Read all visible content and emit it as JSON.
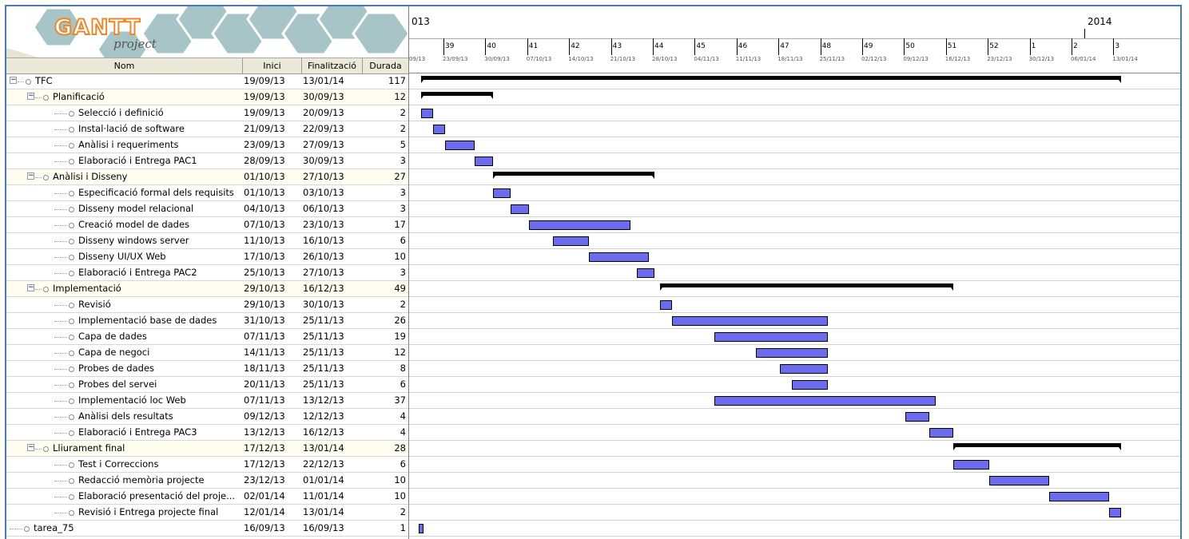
{
  "app": {
    "logo_main": "GANTT",
    "logo_sub": "project"
  },
  "columns": {
    "name": "Nom",
    "start": "Inici",
    "end": "Finalització",
    "duration": "Durada"
  },
  "timeline": {
    "years": [
      "013",
      "2014"
    ],
    "weeks": [
      {
        "num": "",
        "date": "09/13"
      },
      {
        "num": "39",
        "date": "23/09/13"
      },
      {
        "num": "40",
        "date": "30/09/13"
      },
      {
        "num": "41",
        "date": "07/10/13"
      },
      {
        "num": "42",
        "date": "14/10/13"
      },
      {
        "num": "43",
        "date": "21/10/13"
      },
      {
        "num": "44",
        "date": "28/10/13"
      },
      {
        "num": "45",
        "date": "04/11/13"
      },
      {
        "num": "46",
        "date": "11/11/13"
      },
      {
        "num": "47",
        "date": "18/11/13"
      },
      {
        "num": "48",
        "date": "25/11/13"
      },
      {
        "num": "49",
        "date": "02/12/13"
      },
      {
        "num": "50",
        "date": "09/12/13"
      },
      {
        "num": "51",
        "date": "16/12/13"
      },
      {
        "num": "52",
        "date": "23/12/13"
      },
      {
        "num": "1",
        "date": "30/12/13"
      },
      {
        "num": "2",
        "date": "06/01/14"
      },
      {
        "num": "3",
        "date": "13/01/14"
      }
    ]
  },
  "tasks": [
    {
      "name": "TFC",
      "start": "19/09/13",
      "end": "13/01/14",
      "duration": "117",
      "level": 0,
      "type": "summary"
    },
    {
      "name": "Planificació",
      "start": "19/09/13",
      "end": "30/09/13",
      "duration": "12",
      "level": 1,
      "type": "summary"
    },
    {
      "name": "Selecció i definició",
      "start": "19/09/13",
      "end": "20/09/13",
      "duration": "2",
      "level": 2,
      "type": "task"
    },
    {
      "name": "Instal·lació de software",
      "start": "21/09/13",
      "end": "22/09/13",
      "duration": "2",
      "level": 2,
      "type": "task"
    },
    {
      "name": "Anàlisi i requeriments",
      "start": "23/09/13",
      "end": "27/09/13",
      "duration": "5",
      "level": 2,
      "type": "task"
    },
    {
      "name": "Elaboració i Entrega PAC1",
      "start": "28/09/13",
      "end": "30/09/13",
      "duration": "3",
      "level": 2,
      "type": "task"
    },
    {
      "name": "Anàlisi i Disseny",
      "start": "01/10/13",
      "end": "27/10/13",
      "duration": "27",
      "level": 1,
      "type": "summary"
    },
    {
      "name": "Especificació formal dels requisits",
      "start": "01/10/13",
      "end": "03/10/13",
      "duration": "3",
      "level": 2,
      "type": "task"
    },
    {
      "name": "Disseny model relacional",
      "start": "04/10/13",
      "end": "06/10/13",
      "duration": "3",
      "level": 2,
      "type": "task"
    },
    {
      "name": "Creació model de dades",
      "start": "07/10/13",
      "end": "23/10/13",
      "duration": "17",
      "level": 2,
      "type": "task"
    },
    {
      "name": "Disseny windows server",
      "start": "11/10/13",
      "end": "16/10/13",
      "duration": "6",
      "level": 2,
      "type": "task"
    },
    {
      "name": "Disseny UI/UX Web",
      "start": "17/10/13",
      "end": "26/10/13",
      "duration": "10",
      "level": 2,
      "type": "task"
    },
    {
      "name": "Elaboració i Entrega PAC2",
      "start": "25/10/13",
      "end": "27/10/13",
      "duration": "3",
      "level": 2,
      "type": "task"
    },
    {
      "name": "Implementació",
      "start": "29/10/13",
      "end": "16/12/13",
      "duration": "49",
      "level": 1,
      "type": "summary"
    },
    {
      "name": "Revisió",
      "start": "29/10/13",
      "end": "30/10/13",
      "duration": "2",
      "level": 2,
      "type": "task"
    },
    {
      "name": "Implementació base de dades",
      "start": "31/10/13",
      "end": "25/11/13",
      "duration": "26",
      "level": 2,
      "type": "task"
    },
    {
      "name": "Capa de dades",
      "start": "07/11/13",
      "end": "25/11/13",
      "duration": "19",
      "level": 2,
      "type": "task"
    },
    {
      "name": "Capa de negoci",
      "start": "14/11/13",
      "end": "25/11/13",
      "duration": "12",
      "level": 2,
      "type": "task"
    },
    {
      "name": "Probes de dades",
      "start": "18/11/13",
      "end": "25/11/13",
      "duration": "8",
      "level": 2,
      "type": "task"
    },
    {
      "name": "Probes del servei",
      "start": "20/11/13",
      "end": "25/11/13",
      "duration": "6",
      "level": 2,
      "type": "task"
    },
    {
      "name": "Implementació loc Web",
      "start": "07/11/13",
      "end": "13/12/13",
      "duration": "37",
      "level": 2,
      "type": "task"
    },
    {
      "name": "Anàlisi dels resultats",
      "start": "09/12/13",
      "end": "12/12/13",
      "duration": "4",
      "level": 2,
      "type": "task"
    },
    {
      "name": "Elaboració i Entrega PAC3",
      "start": "13/12/13",
      "end": "16/12/13",
      "duration": "4",
      "level": 2,
      "type": "task"
    },
    {
      "name": "Lliurament final",
      "start": "17/12/13",
      "end": "13/01/14",
      "duration": "28",
      "level": 1,
      "type": "summary"
    },
    {
      "name": "Test i Correccions",
      "start": "17/12/13",
      "end": "22/12/13",
      "duration": "6",
      "level": 2,
      "type": "task"
    },
    {
      "name": "Redacció memòria projecte",
      "start": "23/12/13",
      "end": "01/01/14",
      "duration": "10",
      "level": 2,
      "type": "task"
    },
    {
      "name": "Elaboració presentació del proje...",
      "start": "02/01/14",
      "end": "11/01/14",
      "duration": "10",
      "level": 2,
      "type": "task"
    },
    {
      "name": "Revisió i Entrega projecte final",
      "start": "12/01/14",
      "end": "13/01/14",
      "duration": "2",
      "level": 2,
      "type": "task"
    },
    {
      "name": "tarea_75",
      "start": "16/09/13",
      "end": "16/09/13",
      "duration": "1",
      "level": 0,
      "type": "task"
    }
  ],
  "colors": {
    "task_bar": "#6b6bf0",
    "summary_bar": "#000000",
    "frame_border": "#4a7ab5",
    "header_bg": "#ece9d8"
  }
}
